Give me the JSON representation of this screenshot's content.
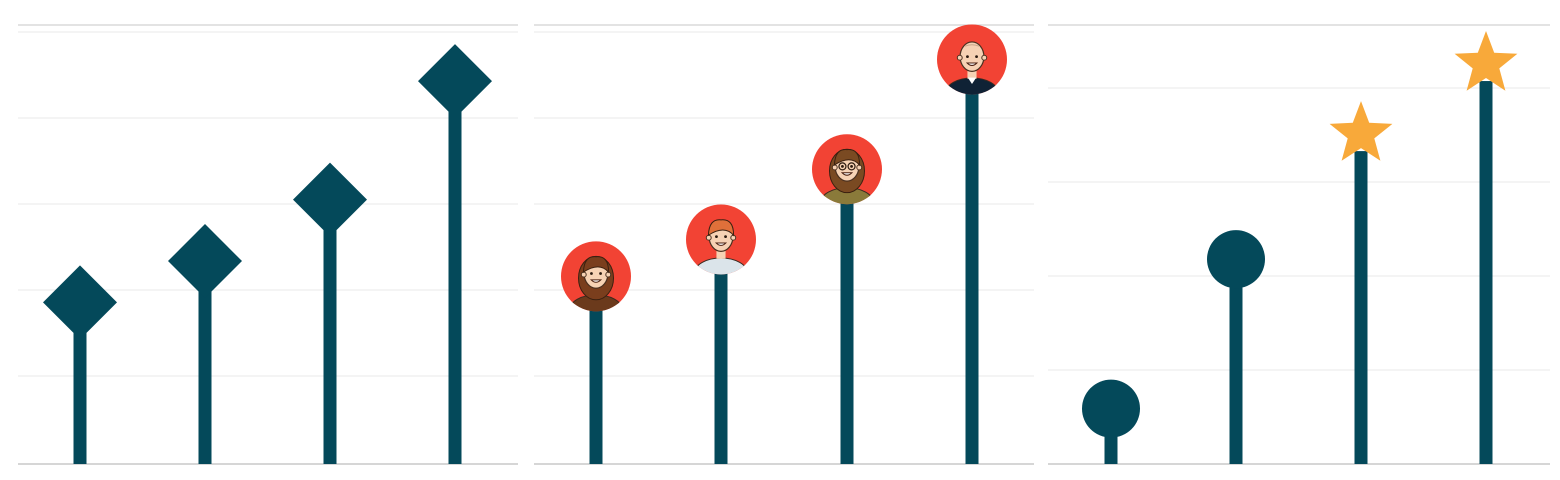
{
  "colors": {
    "stem": "#04495a",
    "diamond": "#04495a",
    "circle": "#04495a",
    "star": "#f8a93a",
    "avatar_bg": "#f24334",
    "grid": "#e8e8e8",
    "baseline": "#c8c8c8",
    "top_rule": "#d2d2d2"
  },
  "chart_data": [
    {
      "type": "lollipop",
      "marker": "diamond-icon",
      "categories": [
        "",
        "",
        "",
        ""
      ],
      "values": [
        1.83,
        2.3,
        3.0,
        4.35
      ],
      "ylim": [
        0,
        5
      ],
      "grid": true,
      "title": "",
      "xlabel": "",
      "ylabel": ""
    },
    {
      "type": "lollipop",
      "marker": "avatar-icon",
      "categories": [
        "",
        "",
        "",
        ""
      ],
      "values": [
        1.83,
        2.25,
        3.05,
        4.3
      ],
      "markers": [
        "avatar-woman-long-hair-icon",
        "avatar-man-red-hair-icon",
        "avatar-woman-glasses-icon",
        "avatar-man-bald-icon"
      ],
      "ylim": [
        0,
        5
      ],
      "grid": true,
      "title": "",
      "xlabel": "",
      "ylabel": ""
    },
    {
      "type": "lollipop",
      "marker": "circle-star-icon",
      "categories": [
        "",
        "",
        "",
        ""
      ],
      "values": [
        0.55,
        2.15,
        3.35,
        4.1
      ],
      "markers": [
        "circle-icon",
        "circle-icon",
        "star-icon",
        "star-icon"
      ],
      "ylim": [
        0,
        4.7
      ],
      "grid": true,
      "title": "",
      "xlabel": "",
      "ylabel": ""
    }
  ]
}
